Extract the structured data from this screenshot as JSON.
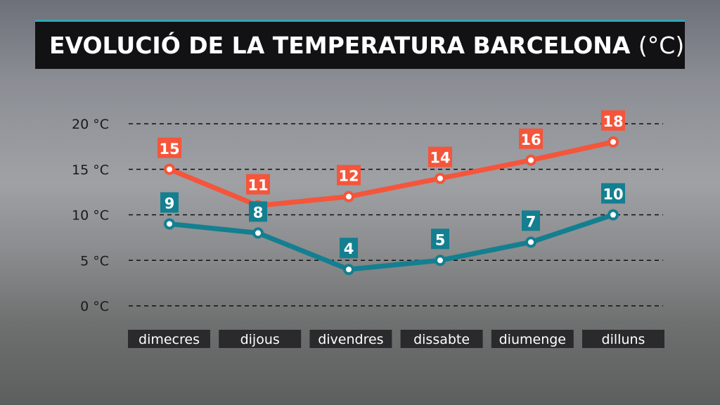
{
  "title": "EVOLUCIÓ DE LA TEMPERATURA BARCELONA",
  "title_unit": "(°C)",
  "chart_data": {
    "type": "line",
    "categories": [
      "dimecres",
      "dijous",
      "divendres",
      "dissabte",
      "diumenge",
      "dilluns"
    ],
    "series": [
      {
        "values": [
          15,
          11,
          12,
          14,
          16,
          18
        ],
        "color": "#f4553b"
      },
      {
        "values": [
          9,
          8,
          4,
          5,
          7,
          10
        ],
        "color": "#137f90"
      }
    ],
    "yticks": [
      "0 °C",
      "5 °C",
      "10 °C",
      "15 °C",
      "20 °C"
    ],
    "ytick_values": [
      0,
      5,
      10,
      15,
      20
    ],
    "ylim": [
      0,
      20
    ],
    "grid": true,
    "grid_style": "dashed"
  }
}
